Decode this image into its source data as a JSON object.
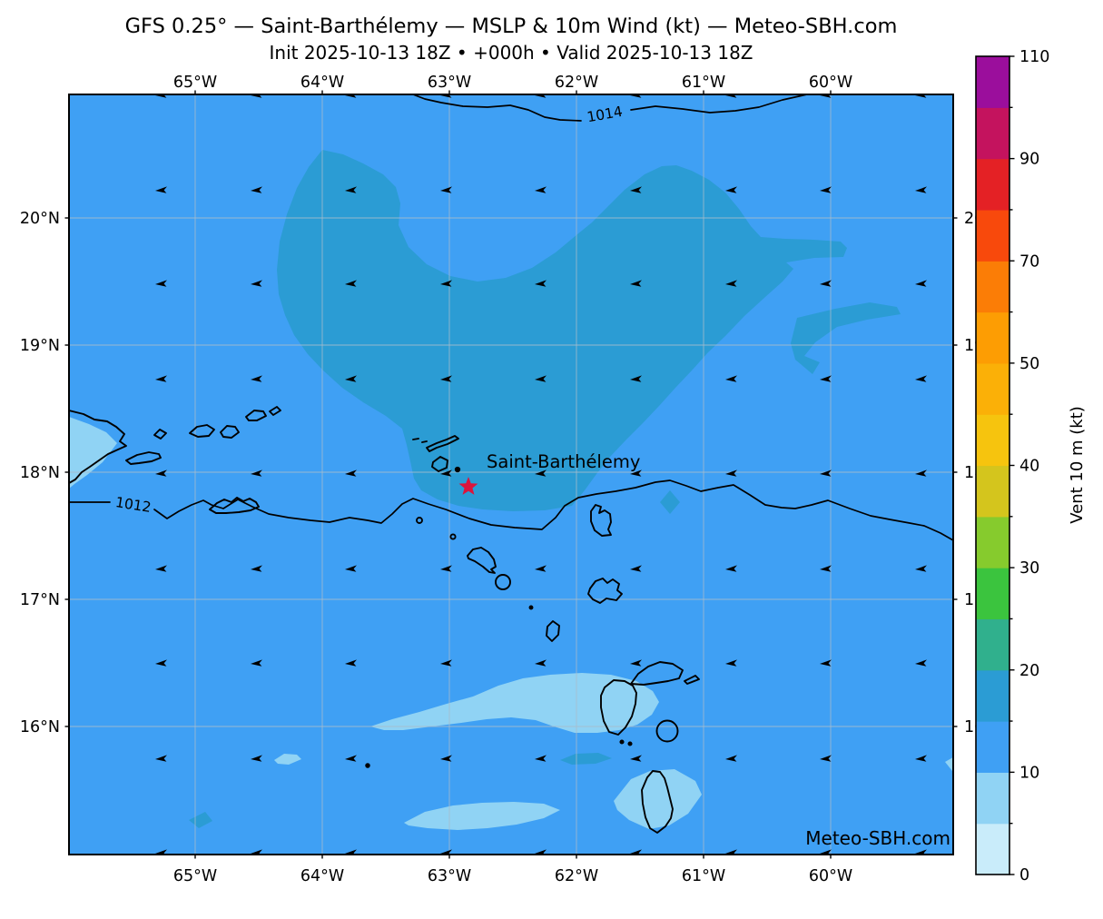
{
  "title": "GFS 0.25° — Saint-Barthélemy — MSLP & 10m Wind (kt) — Meteo-SBH.com",
  "subtitle": "Init 2025-10-13 18Z • +000h • Valid 2025-10-13 18Z",
  "map": {
    "lon_labels": [
      "65°W",
      "64°W",
      "63°W",
      "62°W",
      "61°W",
      "60°W"
    ],
    "lat_labels": [
      "20°N",
      "19°N",
      "18°N",
      "17°N",
      "16°N"
    ],
    "isobar_labels": {
      "high": "1014",
      "low": "1012"
    },
    "marker_label": "Saint-Barthélemy",
    "watermark": "Meteo-SBH.com",
    "wind_arrow_direction": "easterly (pointing west)"
  },
  "colorbar": {
    "label": "Vent 10 m (kt)",
    "tick_labels_bottom_up": [
      "0",
      "10",
      "20",
      "30",
      "40",
      "50",
      "70",
      "90",
      "110"
    ],
    "boundaries": [
      0,
      5,
      10,
      15,
      20,
      25,
      30,
      35,
      40,
      45,
      50,
      60,
      70,
      80,
      90,
      100,
      110
    ],
    "colors_low_to_high": [
      "#c9ecfa",
      "#90d3f4",
      "#3fa0f4",
      "#2b9cd4",
      "#30b08d",
      "#3bc43e",
      "#86cb2d",
      "#d4c51d",
      "#f6c40e",
      "#fbb007",
      "#fd9d03",
      "#fb7d06",
      "#f8490c",
      "#e42125",
      "#c4135e",
      "#9b0e9c"
    ]
  },
  "colors": {
    "wind_bg_10_15": "#3fa0f4",
    "wind_15_20": "#2b9cd4",
    "wind_5_10": "#90d3f4",
    "marker": "#dc143c",
    "marker_label": "#dc2042",
    "watermark": "#8f8f8f"
  }
}
